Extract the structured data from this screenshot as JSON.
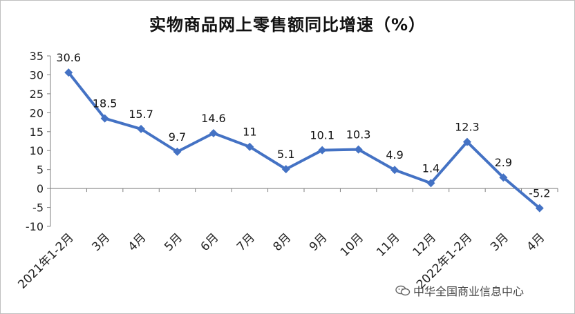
{
  "chart_data": {
    "type": "line",
    "title": "实物商品网上零售额同比增速（%）",
    "categories": [
      "2021年1-2月",
      "3月",
      "4月",
      "5月",
      "6月",
      "7月",
      "8月",
      "9月",
      "10月",
      "11月",
      "12月",
      "2022年1-2月",
      "3月",
      "4月"
    ],
    "series": [
      {
        "values": [
          30.6,
          18.5,
          15.7,
          9.7,
          14.6,
          11,
          5.1,
          10.1,
          10.3,
          4.9,
          1.4,
          12.3,
          2.9,
          -5.2
        ]
      }
    ],
    "data_labels": [
      "30.6",
      "18.5",
      "15.7",
      "9.7",
      "14.6",
      "11",
      "5.1",
      "10.1",
      "10.3",
      "4.9",
      "1.4",
      "12.3",
      "2.9",
      "-5.2"
    ],
    "yticks": [
      "35",
      "30",
      "25",
      "20",
      "15",
      "10",
      "5",
      "0",
      "-5",
      "-10"
    ],
    "ylim": [
      -10,
      35
    ],
    "grid": false,
    "legend": "none",
    "line_color": "#4472C4"
  },
  "watermark": {
    "text": "中华全国商业信息中心",
    "icon": "wechat-icon"
  }
}
